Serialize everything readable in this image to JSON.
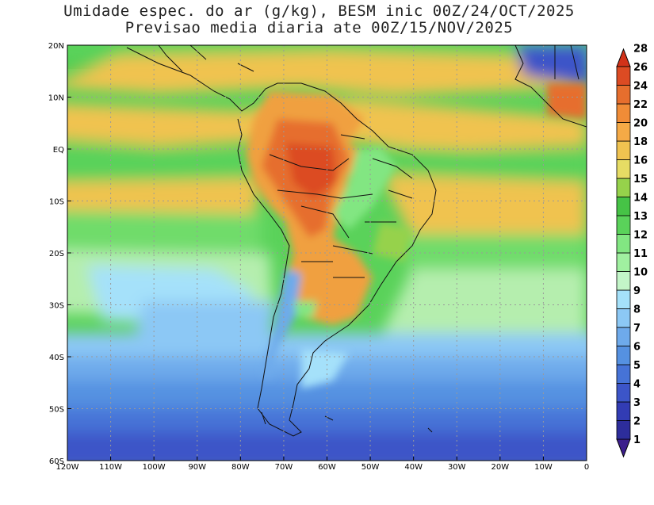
{
  "title": {
    "line1": "Umidade espec. do ar (g/kg), BESM inic 00Z/24/OCT/2025",
    "line2": "Previsao media diaria ate 00Z/15/NOV/2025"
  },
  "axes": {
    "lon_labels": [
      "120W",
      "110W",
      "100W",
      "90W",
      "80W",
      "70W",
      "60W",
      "50W",
      "40W",
      "30W",
      "20W",
      "10W",
      "0"
    ],
    "lat_labels": [
      "20N",
      "10N",
      "EQ",
      "10S",
      "20S",
      "30S",
      "40S",
      "50S",
      "60S"
    ]
  },
  "colorbar": {
    "levels": [
      "1",
      "2",
      "3",
      "4",
      "5",
      "6",
      "7",
      "8",
      "9",
      "10",
      "11",
      "12",
      "13",
      "14",
      "15",
      "16",
      "18",
      "20",
      "22",
      "24",
      "26",
      "28"
    ],
    "colors": [
      "#3c1e8c",
      "#2d2d9b",
      "#323cb4",
      "#3c55c8",
      "#4673d7",
      "#5591e1",
      "#6eaaeb",
      "#8cc8f5",
      "#a5e1fa",
      "#c3f5c8",
      "#a0f0a0",
      "#82e682",
      "#5ad25a",
      "#46c346",
      "#96d24b",
      "#e6dc64",
      "#f0c350",
      "#f5aa46",
      "#f08c37",
      "#e66e2d",
      "#dc4b23",
      "#d23219"
    ]
  }
}
